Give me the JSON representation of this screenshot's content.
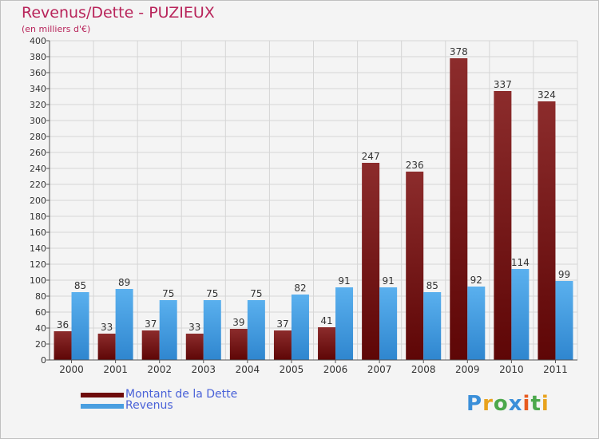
{
  "header": {
    "title": "Revenus/Dette - PUZIEUX",
    "subtitle": "(en milliers d'€)"
  },
  "legend": {
    "items": [
      {
        "label": "Montant de la Dette",
        "color": "#6e0b0b"
      },
      {
        "label": "Revenus",
        "color": "#4a9fe0"
      }
    ]
  },
  "logo": {
    "text": "Proxiti",
    "letters": [
      {
        "ch": "P",
        "color": "#3b8fd9"
      },
      {
        "ch": "r",
        "color": "#e8a21d"
      },
      {
        "ch": "o",
        "color": "#4ca84c"
      },
      {
        "ch": "x",
        "color": "#3b8fd9"
      },
      {
        "ch": "i",
        "color": "#e85a1d"
      },
      {
        "ch": "t",
        "color": "#4ca84c"
      },
      {
        "ch": "i",
        "color": "#e8a21d"
      }
    ]
  },
  "chart_data": {
    "type": "bar",
    "title": "Revenus/Dette - PUZIEUX",
    "subtitle": "(en milliers d'€)",
    "categories": [
      "2000",
      "2001",
      "2002",
      "2003",
      "2004",
      "2005",
      "2006",
      "2007",
      "2008",
      "2009",
      "2010",
      "2011"
    ],
    "series": [
      {
        "name": "Montant de la Dette",
        "color": "#7a1414",
        "values": [
          36,
          33,
          37,
          33,
          39,
          37,
          41,
          247,
          236,
          378,
          337,
          324
        ]
      },
      {
        "name": "Revenus",
        "color": "#4aa0e2",
        "values": [
          85,
          89,
          75,
          75,
          75,
          82,
          91,
          91,
          85,
          92,
          114,
          99
        ]
      }
    ],
    "ylim": [
      0,
      400
    ],
    "ytick_step": 20,
    "grid": true,
    "legend_position": "bottom-left"
  }
}
